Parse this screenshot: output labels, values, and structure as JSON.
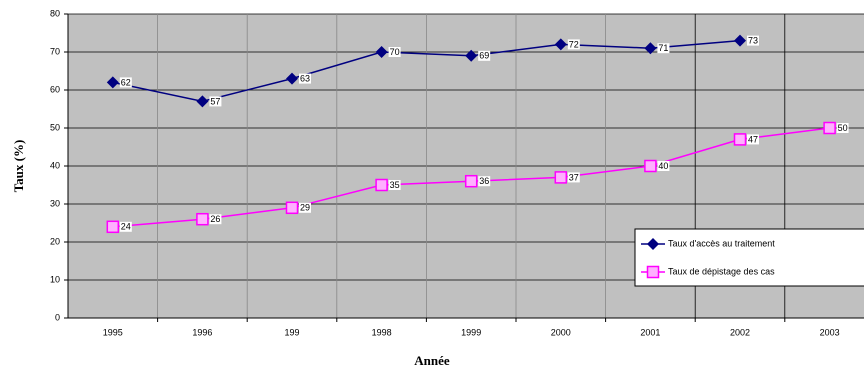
{
  "chart_data": {
    "type": "line",
    "ylabel": "Taux (%)",
    "xlabel": "Année",
    "categories": [
      "1995",
      "1996",
      "199",
      "1998",
      "1999",
      "2000",
      "2001",
      "2002",
      "2003"
    ],
    "series": [
      {
        "name": "Taux d'accès au traitement",
        "color": "#000080",
        "marker": "diamond",
        "values": [
          62,
          57,
          63,
          70,
          69,
          72,
          71,
          73,
          null
        ]
      },
      {
        "name": "Taux de dépistage des cas",
        "color": "#ff00ff",
        "marker": "square",
        "values": [
          24,
          26,
          29,
          35,
          36,
          37,
          40,
          47,
          50
        ]
      }
    ],
    "ylim": [
      0,
      80
    ],
    "yticks": [
      0,
      10,
      20,
      30,
      40,
      50,
      60,
      70,
      80
    ],
    "grid": true,
    "legend": "right"
  }
}
